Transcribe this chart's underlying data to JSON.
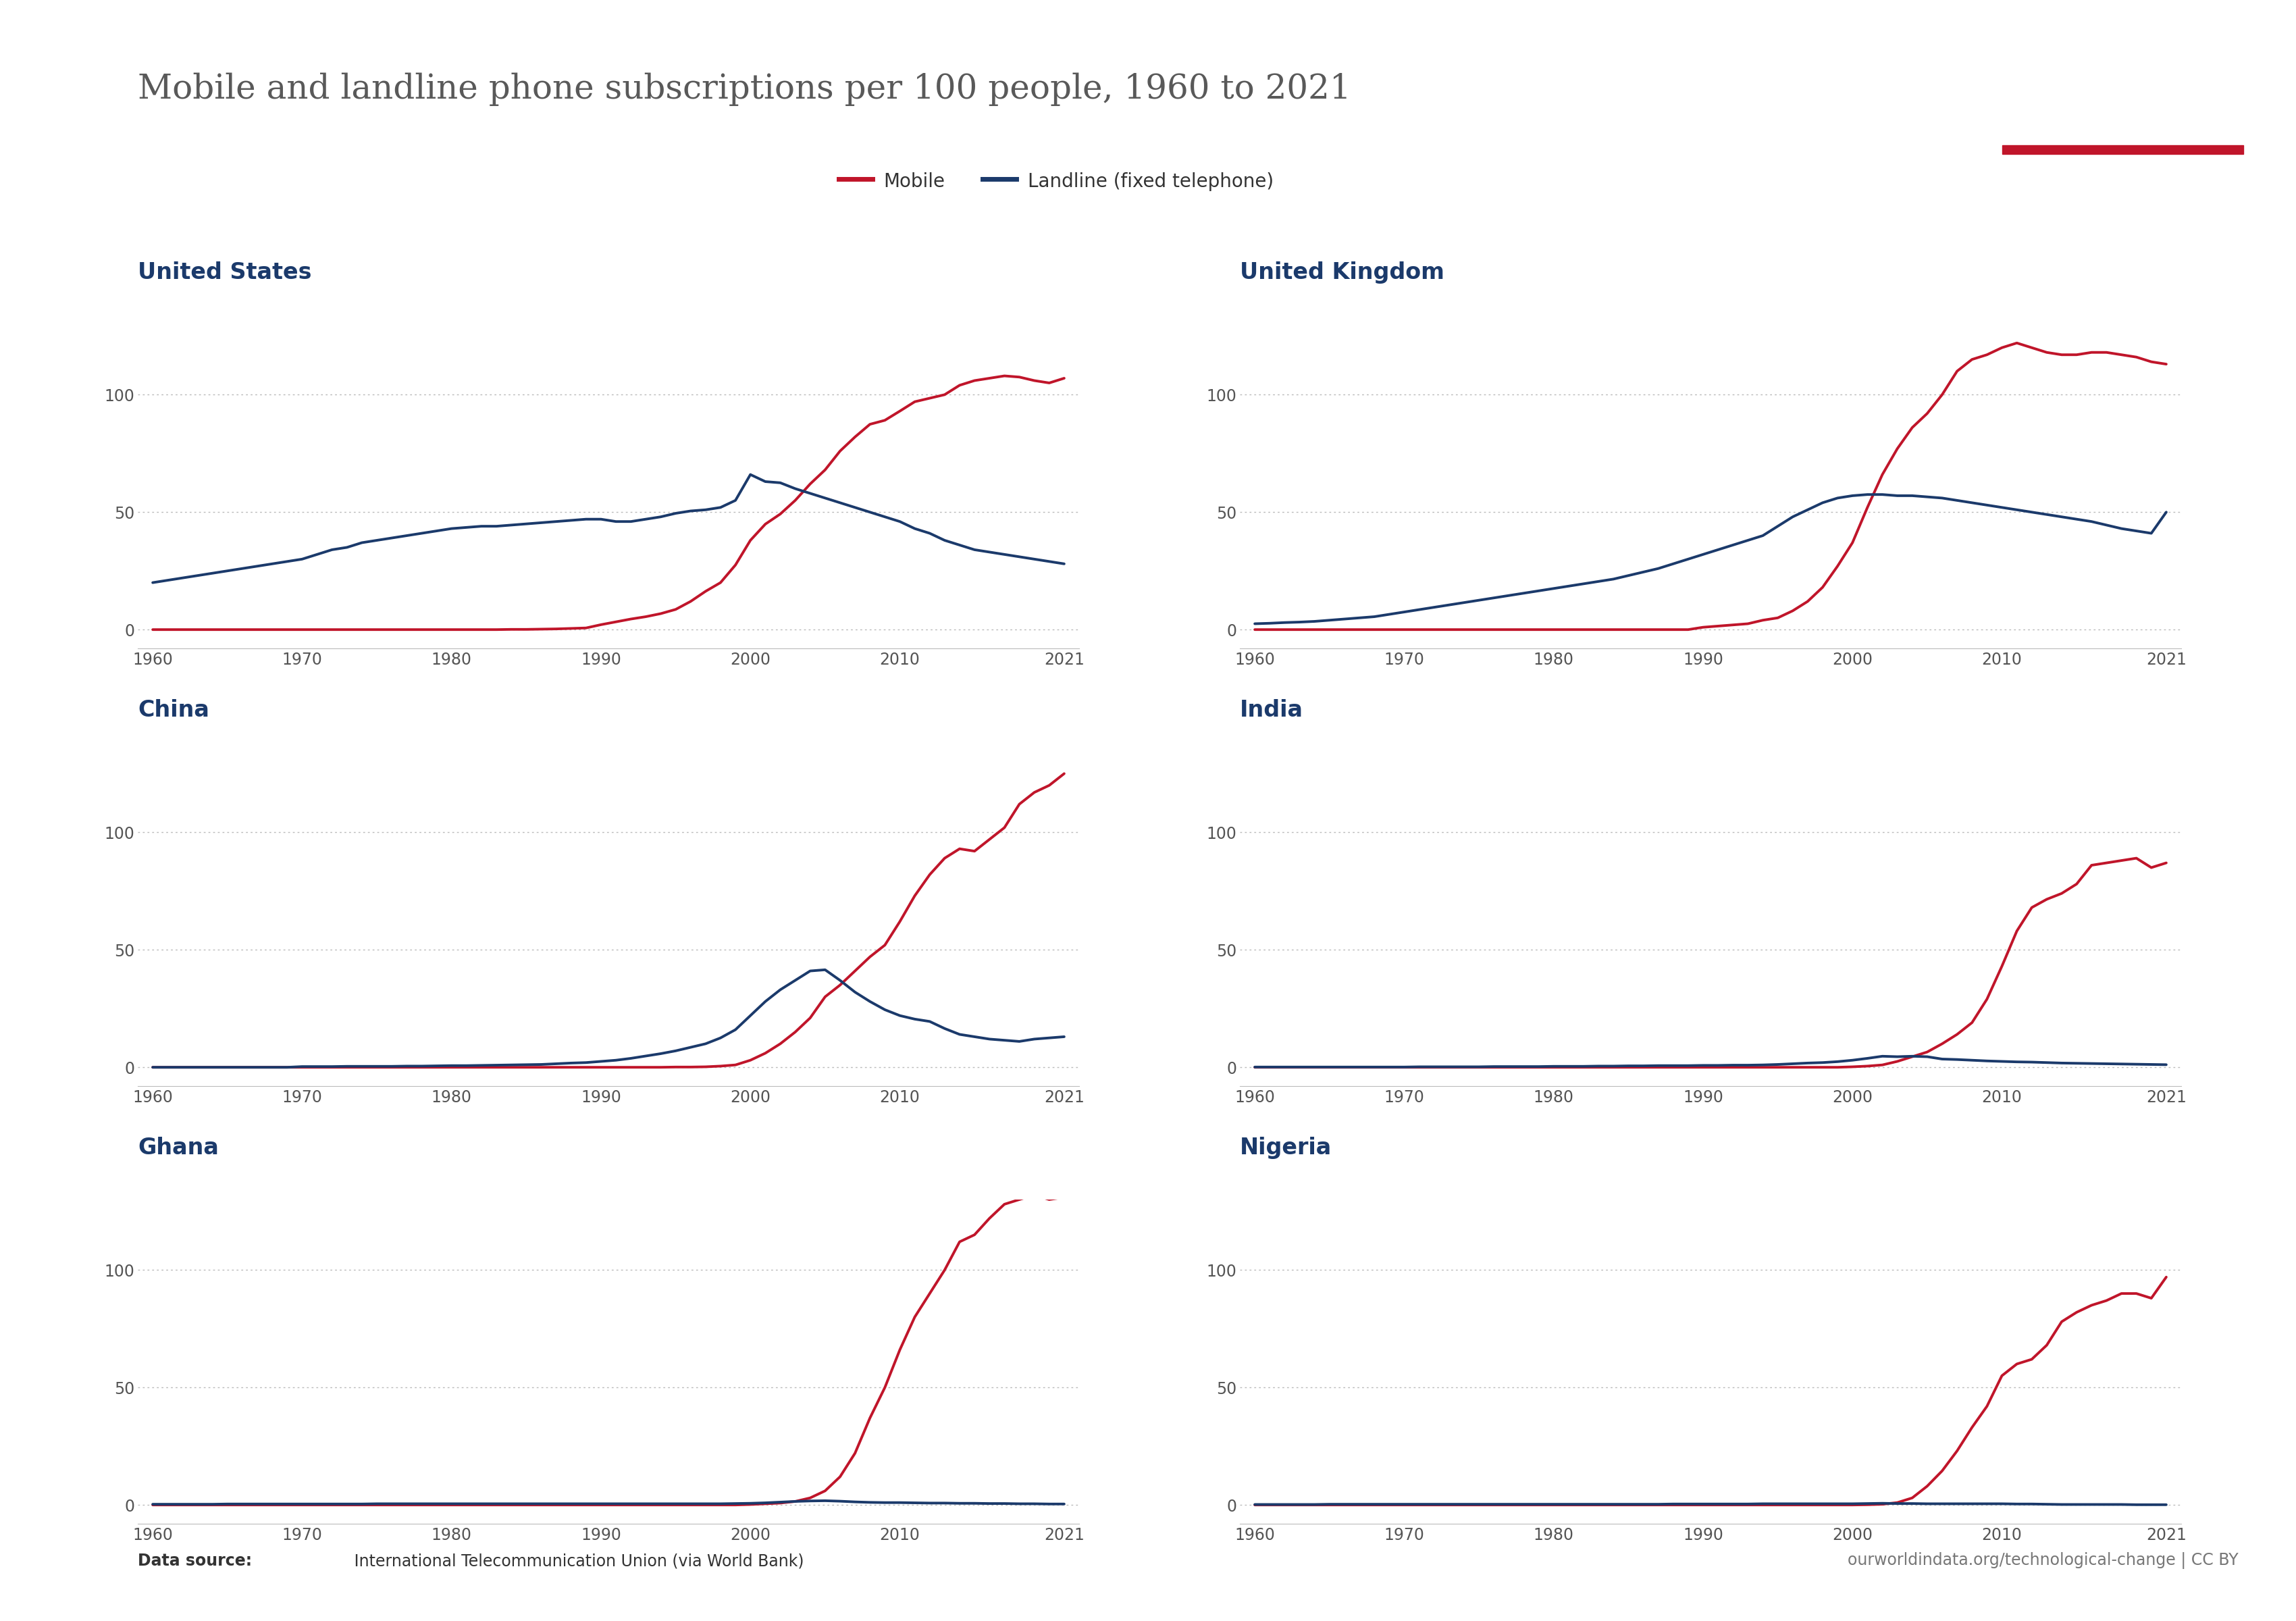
{
  "title": "Mobile and landline phone subscriptions per 100 people, 1960 to 2021",
  "title_color": "#595959",
  "mobile_color": "#C0152A",
  "landline_color": "#1B3A6B",
  "background_color": "#ffffff",
  "logo_bg": "#1B3A6B",
  "legend_mobile": "Mobile",
  "legend_landline": "Landline (fixed telephone)",
  "source_bold": "Data source:",
  "source_rest": " International Telecommunication Union (via World Bank)",
  "source_right": "ourworldindata.org/technological-change | CC BY",
  "countries": [
    "United States",
    "United Kingdom",
    "China",
    "India",
    "Ghana",
    "Nigeria"
  ],
  "subplot_title_color": "#1B3A6B",
  "years": [
    1960,
    1961,
    1962,
    1963,
    1964,
    1965,
    1966,
    1967,
    1968,
    1969,
    1970,
    1971,
    1972,
    1973,
    1974,
    1975,
    1976,
    1977,
    1978,
    1979,
    1980,
    1981,
    1982,
    1983,
    1984,
    1985,
    1986,
    1987,
    1988,
    1989,
    1990,
    1991,
    1992,
    1993,
    1994,
    1995,
    1996,
    1997,
    1998,
    1999,
    2000,
    2001,
    2002,
    2003,
    2004,
    2005,
    2006,
    2007,
    2008,
    2009,
    2010,
    2011,
    2012,
    2013,
    2014,
    2015,
    2016,
    2017,
    2018,
    2019,
    2020,
    2021
  ],
  "data": {
    "United States": {
      "mobile": [
        0,
        0,
        0,
        0,
        0,
        0,
        0,
        0,
        0,
        0,
        0,
        0,
        0,
        0,
        0,
        0,
        0,
        0,
        0,
        0,
        0,
        0,
        0,
        0,
        0.1,
        0.1,
        0.2,
        0.3,
        0.5,
        0.7,
        2.1,
        3.3,
        4.5,
        5.5,
        6.8,
        8.6,
        12.0,
        16.3,
        20.0,
        27.5,
        38.0,
        44.9,
        49.2,
        55.0,
        62.0,
        68.0,
        76.0,
        82.0,
        87.4,
        89.1,
        93.0,
        97.0,
        98.5,
        100.0,
        104.0,
        106.0,
        107.0,
        108.0,
        107.5,
        106.0,
        105.0,
        107.0
      ],
      "landline": [
        20,
        21,
        22,
        23,
        24,
        25,
        26,
        27,
        28,
        29,
        30,
        32,
        34,
        35,
        37,
        38,
        39,
        40,
        41,
        42,
        43,
        43.5,
        44,
        44,
        44.5,
        45,
        45.5,
        46,
        46.5,
        47,
        47,
        46,
        46,
        47,
        48,
        49.5,
        50.5,
        51,
        52,
        55,
        66,
        63,
        62.5,
        60,
        58,
        56,
        54,
        52,
        50,
        48,
        46,
        43,
        41,
        38,
        36,
        34,
        33,
        32,
        31,
        30,
        29,
        28
      ]
    },
    "United Kingdom": {
      "mobile": [
        0,
        0,
        0,
        0,
        0,
        0,
        0,
        0,
        0,
        0,
        0,
        0,
        0,
        0,
        0,
        0,
        0,
        0,
        0,
        0,
        0,
        0,
        0,
        0,
        0,
        0,
        0,
        0,
        0,
        0,
        1.0,
        1.5,
        2.0,
        2.5,
        4.0,
        5.0,
        8.0,
        12.0,
        18.0,
        27.0,
        37.0,
        52.0,
        66.0,
        77.0,
        86.0,
        92.0,
        100.0,
        110.0,
        115.0,
        117.0,
        120.0,
        122.0,
        120.0,
        118.0,
        117.0,
        117.0,
        118.0,
        118.0,
        117.0,
        116.0,
        114.0,
        113.0
      ],
      "landline": [
        2.5,
        2.7,
        3.0,
        3.2,
        3.5,
        4.0,
        4.5,
        5.0,
        5.5,
        6.5,
        7.5,
        8.5,
        9.5,
        10.5,
        11.5,
        12.5,
        13.5,
        14.5,
        15.5,
        16.5,
        17.5,
        18.5,
        19.5,
        20.5,
        21.5,
        23.0,
        24.5,
        26.0,
        28.0,
        30.0,
        32.0,
        34.0,
        36.0,
        38.0,
        40.0,
        44.0,
        48.0,
        51.0,
        54.0,
        56.0,
        57.0,
        57.5,
        57.5,
        57.0,
        57.0,
        56.5,
        56.0,
        55.0,
        54.0,
        53.0,
        52.0,
        51.0,
        50.0,
        49.0,
        48.0,
        47.0,
        46.0,
        44.5,
        43.0,
        42.0,
        41.0,
        50.0
      ]
    },
    "China": {
      "mobile": [
        0,
        0,
        0,
        0,
        0,
        0,
        0,
        0,
        0,
        0,
        0,
        0,
        0,
        0,
        0,
        0,
        0,
        0,
        0,
        0,
        0,
        0,
        0,
        0,
        0,
        0,
        0,
        0,
        0,
        0,
        0,
        0,
        0,
        0,
        0,
        0.1,
        0.1,
        0.2,
        0.5,
        1.0,
        3.0,
        6.0,
        10.0,
        15.0,
        21.0,
        30.0,
        35.0,
        41.0,
        47.0,
        52.0,
        62.0,
        73.0,
        82.0,
        89.0,
        93.0,
        92.0,
        97.0,
        102.0,
        112.0,
        117.0,
        120.0,
        125.0
      ],
      "landline": [
        0,
        0,
        0,
        0,
        0,
        0,
        0,
        0,
        0,
        0,
        0.3,
        0.3,
        0.3,
        0.4,
        0.4,
        0.4,
        0.4,
        0.5,
        0.5,
        0.6,
        0.7,
        0.7,
        0.8,
        0.9,
        1.0,
        1.1,
        1.2,
        1.5,
        1.8,
        2.0,
        2.5,
        3.0,
        3.8,
        4.8,
        5.8,
        7.0,
        8.5,
        10.0,
        12.5,
        16.0,
        22.0,
        28.0,
        33.0,
        37.0,
        41.0,
        41.5,
        37.0,
        32.0,
        28.0,
        24.5,
        22.0,
        20.5,
        19.5,
        16.5,
        14.0,
        13.0,
        12.0,
        11.5,
        11.0,
        12.0,
        12.5,
        13.0
      ]
    },
    "India": {
      "mobile": [
        0,
        0,
        0,
        0,
        0,
        0,
        0,
        0,
        0,
        0,
        0,
        0,
        0,
        0,
        0,
        0,
        0,
        0,
        0,
        0,
        0,
        0,
        0,
        0,
        0,
        0,
        0,
        0,
        0,
        0,
        0,
        0,
        0,
        0,
        0,
        0,
        0,
        0,
        0,
        0,
        0.2,
        0.5,
        1.0,
        2.5,
        4.5,
        6.5,
        10.0,
        14.0,
        19.0,
        29.0,
        43.0,
        58.0,
        68.0,
        71.5,
        74.0,
        78.0,
        86.0,
        87.0,
        88.0,
        89.0,
        85.0,
        87.0
      ],
      "landline": [
        0.1,
        0.1,
        0.1,
        0.1,
        0.1,
        0.1,
        0.1,
        0.1,
        0.1,
        0.1,
        0.1,
        0.2,
        0.2,
        0.2,
        0.2,
        0.2,
        0.3,
        0.3,
        0.3,
        0.3,
        0.4,
        0.4,
        0.4,
        0.5,
        0.5,
        0.6,
        0.6,
        0.7,
        0.7,
        0.7,
        0.8,
        0.8,
        0.9,
        0.9,
        1.0,
        1.2,
        1.5,
        1.8,
        2.0,
        2.4,
        3.0,
        3.8,
        4.7,
        4.5,
        4.7,
        4.5,
        3.5,
        3.3,
        3.0,
        2.7,
        2.5,
        2.3,
        2.2,
        2.0,
        1.8,
        1.7,
        1.6,
        1.5,
        1.4,
        1.3,
        1.2,
        1.1
      ]
    },
    "Ghana": {
      "mobile": [
        0,
        0,
        0,
        0,
        0,
        0,
        0,
        0,
        0,
        0,
        0,
        0,
        0,
        0,
        0,
        0,
        0,
        0,
        0,
        0,
        0,
        0,
        0,
        0,
        0,
        0,
        0,
        0,
        0,
        0,
        0,
        0,
        0,
        0,
        0,
        0,
        0,
        0,
        0,
        0,
        0.2,
        0.5,
        0.8,
        1.5,
        3.0,
        6.0,
        12.0,
        22.0,
        37.0,
        50.0,
        66.0,
        80.0,
        90.0,
        100.0,
        112.0,
        115.0,
        122.0,
        128.0,
        130.0,
        132.0,
        130.0,
        131.0
      ],
      "landline": [
        0.3,
        0.3,
        0.3,
        0.3,
        0.3,
        0.4,
        0.4,
        0.4,
        0.4,
        0.4,
        0.4,
        0.4,
        0.4,
        0.4,
        0.4,
        0.5,
        0.5,
        0.5,
        0.5,
        0.5,
        0.5,
        0.5,
        0.5,
        0.5,
        0.5,
        0.5,
        0.5,
        0.5,
        0.5,
        0.5,
        0.5,
        0.5,
        0.5,
        0.5,
        0.5,
        0.5,
        0.5,
        0.5,
        0.5,
        0.6,
        0.7,
        0.9,
        1.2,
        1.5,
        1.7,
        1.8,
        1.6,
        1.3,
        1.1,
        1.0,
        1.0,
        0.9,
        0.8,
        0.8,
        0.7,
        0.7,
        0.6,
        0.6,
        0.5,
        0.5,
        0.4,
        0.4
      ]
    },
    "Nigeria": {
      "mobile": [
        0,
        0,
        0,
        0,
        0,
        0,
        0,
        0,
        0,
        0,
        0,
        0,
        0,
        0,
        0,
        0,
        0,
        0,
        0,
        0,
        0,
        0,
        0,
        0,
        0,
        0,
        0,
        0,
        0,
        0,
        0,
        0,
        0,
        0,
        0,
        0,
        0,
        0,
        0,
        0,
        0,
        0.1,
        0.3,
        1.0,
        3.0,
        8.0,
        14.5,
        23.0,
        33.0,
        42.0,
        55.0,
        60.0,
        62.0,
        68.0,
        78.0,
        82.0,
        85.0,
        87.0,
        90.0,
        90.0,
        88.0,
        97.0
      ],
      "landline": [
        0.2,
        0.2,
        0.2,
        0.2,
        0.2,
        0.3,
        0.3,
        0.3,
        0.3,
        0.3,
        0.3,
        0.3,
        0.3,
        0.3,
        0.3,
        0.3,
        0.3,
        0.3,
        0.3,
        0.3,
        0.3,
        0.3,
        0.3,
        0.3,
        0.3,
        0.3,
        0.3,
        0.3,
        0.4,
        0.4,
        0.4,
        0.4,
        0.4,
        0.4,
        0.5,
        0.5,
        0.5,
        0.5,
        0.5,
        0.5,
        0.5,
        0.6,
        0.7,
        0.6,
        0.6,
        0.5,
        0.5,
        0.5,
        0.5,
        0.5,
        0.5,
        0.4,
        0.4,
        0.3,
        0.2,
        0.2,
        0.2,
        0.2,
        0.2,
        0.1,
        0.1,
        0.1
      ]
    }
  }
}
